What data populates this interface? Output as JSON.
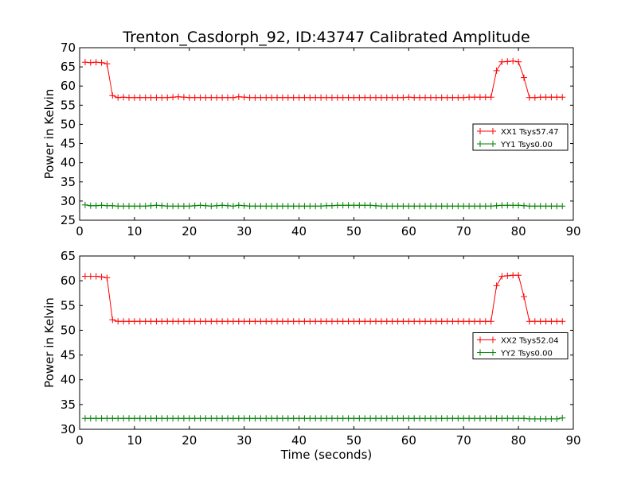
{
  "title": "Trenton_Casdorph_92, ID:43747 Calibrated Amplitude",
  "chart_data": [
    {
      "type": "line",
      "ylabel": "Power in Kelvin",
      "xlabel": "",
      "xlim": [
        0,
        90
      ],
      "ylim": [
        25,
        70
      ],
      "xticks": [
        0,
        10,
        20,
        30,
        40,
        50,
        60,
        70,
        80,
        90
      ],
      "yticks": [
        25,
        30,
        35,
        40,
        45,
        50,
        55,
        60,
        65,
        70
      ],
      "grid": false,
      "legend_position": "center-right",
      "series": [
        {
          "name": "XX1 Tsys57.47",
          "color": "#ff0000",
          "x": [
            1,
            2,
            3,
            4,
            5,
            6,
            7,
            8,
            9,
            10,
            11,
            12,
            13,
            14,
            15,
            16,
            17,
            18,
            19,
            20,
            21,
            22,
            23,
            24,
            25,
            26,
            27,
            28,
            29,
            30,
            31,
            32,
            33,
            34,
            35,
            36,
            37,
            38,
            39,
            40,
            41,
            42,
            43,
            44,
            45,
            46,
            47,
            48,
            49,
            50,
            51,
            52,
            53,
            54,
            55,
            56,
            57,
            58,
            59,
            60,
            61,
            62,
            63,
            64,
            65,
            66,
            67,
            68,
            69,
            70,
            71,
            72,
            73,
            74,
            75,
            76,
            77,
            78,
            79,
            80,
            81,
            82,
            83,
            84,
            85,
            86,
            87,
            88
          ],
          "values": [
            66.2,
            66.1,
            66.2,
            66.1,
            65.8,
            57.5,
            57.0,
            57.1,
            57.0,
            57.0,
            57.0,
            57.0,
            57.0,
            57.0,
            57.0,
            57.0,
            57.1,
            57.2,
            57.1,
            57.0,
            57.0,
            57.0,
            57.0,
            57.0,
            57.0,
            57.0,
            57.0,
            57.0,
            57.2,
            57.1,
            57.0,
            57.0,
            57.0,
            57.0,
            57.0,
            57.0,
            57.0,
            57.0,
            57.0,
            57.0,
            57.0,
            57.0,
            57.0,
            57.0,
            57.0,
            57.0,
            57.0,
            57.0,
            57.0,
            57.0,
            57.0,
            57.0,
            57.0,
            57.0,
            57.0,
            57.0,
            57.0,
            57.0,
            57.0,
            57.1,
            57.0,
            57.0,
            57.0,
            57.0,
            57.0,
            57.0,
            57.0,
            57.0,
            57.0,
            57.0,
            57.1,
            57.1,
            57.1,
            57.1,
            57.1,
            64.0,
            66.3,
            66.4,
            66.5,
            66.3,
            62.2,
            57.0,
            57.0,
            57.1,
            57.1,
            57.1,
            57.1,
            57.1
          ]
        },
        {
          "name": "YY1 Tsys0.00",
          "color": "#008000",
          "x": [
            1,
            2,
            3,
            4,
            5,
            6,
            7,
            8,
            9,
            10,
            11,
            12,
            13,
            14,
            15,
            16,
            17,
            18,
            19,
            20,
            21,
            22,
            23,
            24,
            25,
            26,
            27,
            28,
            29,
            30,
            31,
            32,
            33,
            34,
            35,
            36,
            37,
            38,
            39,
            40,
            41,
            42,
            43,
            44,
            45,
            46,
            47,
            48,
            49,
            50,
            51,
            52,
            53,
            54,
            55,
            56,
            57,
            58,
            59,
            60,
            61,
            62,
            63,
            64,
            65,
            66,
            67,
            68,
            69,
            70,
            71,
            72,
            73,
            74,
            75,
            76,
            77,
            78,
            79,
            80,
            81,
            82,
            83,
            84,
            85,
            86,
            87,
            88
          ],
          "values": [
            29.0,
            28.8,
            28.8,
            28.9,
            28.8,
            28.8,
            28.7,
            28.7,
            28.7,
            28.7,
            28.7,
            28.7,
            28.8,
            28.9,
            28.8,
            28.7,
            28.7,
            28.7,
            28.7,
            28.7,
            28.8,
            28.9,
            28.8,
            28.7,
            28.8,
            28.9,
            28.8,
            28.7,
            28.9,
            28.8,
            28.7,
            28.7,
            28.7,
            28.7,
            28.7,
            28.7,
            28.7,
            28.7,
            28.7,
            28.7,
            28.7,
            28.7,
            28.7,
            28.7,
            28.8,
            28.8,
            28.9,
            28.9,
            28.9,
            28.9,
            28.9,
            28.9,
            28.9,
            28.8,
            28.7,
            28.7,
            28.7,
            28.7,
            28.7,
            28.7,
            28.7,
            28.7,
            28.7,
            28.7,
            28.7,
            28.7,
            28.7,
            28.7,
            28.7,
            28.7,
            28.7,
            28.7,
            28.7,
            28.7,
            28.7,
            28.8,
            28.9,
            28.9,
            28.9,
            28.9,
            28.8,
            28.7,
            28.7,
            28.7,
            28.7,
            28.7,
            28.7,
            28.7
          ]
        }
      ]
    },
    {
      "type": "line",
      "ylabel": "Power in Kelvin",
      "xlabel": "Time (seconds)",
      "xlim": [
        0,
        90
      ],
      "ylim": [
        30,
        65
      ],
      "xticks": [
        0,
        10,
        20,
        30,
        40,
        50,
        60,
        70,
        80,
        90
      ],
      "yticks": [
        30,
        35,
        40,
        45,
        50,
        55,
        60,
        65
      ],
      "grid": false,
      "legend_position": "center-right",
      "series": [
        {
          "name": "XX2 Tsys52.04",
          "color": "#ff0000",
          "x": [
            1,
            2,
            3,
            4,
            5,
            6,
            7,
            8,
            9,
            10,
            11,
            12,
            13,
            14,
            15,
            16,
            17,
            18,
            19,
            20,
            21,
            22,
            23,
            24,
            25,
            26,
            27,
            28,
            29,
            30,
            31,
            32,
            33,
            34,
            35,
            36,
            37,
            38,
            39,
            40,
            41,
            42,
            43,
            44,
            45,
            46,
            47,
            48,
            49,
            50,
            51,
            52,
            53,
            54,
            55,
            56,
            57,
            58,
            59,
            60,
            61,
            62,
            63,
            64,
            65,
            66,
            67,
            68,
            69,
            70,
            71,
            72,
            73,
            74,
            75,
            76,
            77,
            78,
            79,
            80,
            81,
            82,
            83,
            84,
            85,
            86,
            87,
            88
          ],
          "values": [
            60.9,
            60.9,
            60.9,
            60.8,
            60.6,
            52.1,
            51.8,
            51.8,
            51.8,
            51.8,
            51.8,
            51.8,
            51.8,
            51.8,
            51.8,
            51.8,
            51.8,
            51.8,
            51.8,
            51.8,
            51.8,
            51.8,
            51.8,
            51.8,
            51.8,
            51.8,
            51.8,
            51.8,
            51.8,
            51.8,
            51.8,
            51.8,
            51.8,
            51.8,
            51.8,
            51.8,
            51.8,
            51.8,
            51.8,
            51.8,
            51.8,
            51.8,
            51.8,
            51.8,
            51.8,
            51.8,
            51.8,
            51.8,
            51.8,
            51.8,
            51.8,
            51.8,
            51.8,
            51.8,
            51.8,
            51.8,
            51.8,
            51.8,
            51.8,
            51.8,
            51.8,
            51.8,
            51.8,
            51.8,
            51.8,
            51.8,
            51.8,
            51.8,
            51.8,
            51.8,
            51.8,
            51.8,
            51.8,
            51.8,
            51.8,
            59.0,
            60.9,
            61.0,
            61.1,
            61.1,
            56.8,
            51.8,
            51.8,
            51.8,
            51.8,
            51.8,
            51.8,
            51.8
          ]
        },
        {
          "name": "YY2 Tsys0.00",
          "color": "#008000",
          "x": [
            1,
            2,
            3,
            4,
            5,
            6,
            7,
            8,
            9,
            10,
            11,
            12,
            13,
            14,
            15,
            16,
            17,
            18,
            19,
            20,
            21,
            22,
            23,
            24,
            25,
            26,
            27,
            28,
            29,
            30,
            31,
            32,
            33,
            34,
            35,
            36,
            37,
            38,
            39,
            40,
            41,
            42,
            43,
            44,
            45,
            46,
            47,
            48,
            49,
            50,
            51,
            52,
            53,
            54,
            55,
            56,
            57,
            58,
            59,
            60,
            61,
            62,
            63,
            64,
            65,
            66,
            67,
            68,
            69,
            70,
            71,
            72,
            73,
            74,
            75,
            76,
            77,
            78,
            79,
            80,
            81,
            82,
            83,
            84,
            85,
            86,
            87,
            88
          ],
          "values": [
            32.2,
            32.2,
            32.2,
            32.2,
            32.2,
            32.2,
            32.2,
            32.2,
            32.2,
            32.2,
            32.2,
            32.2,
            32.2,
            32.2,
            32.2,
            32.2,
            32.2,
            32.2,
            32.2,
            32.2,
            32.2,
            32.2,
            32.2,
            32.2,
            32.2,
            32.2,
            32.2,
            32.2,
            32.2,
            32.2,
            32.2,
            32.2,
            32.2,
            32.2,
            32.2,
            32.2,
            32.2,
            32.2,
            32.2,
            32.2,
            32.2,
            32.2,
            32.2,
            32.2,
            32.2,
            32.2,
            32.2,
            32.2,
            32.2,
            32.2,
            32.2,
            32.2,
            32.2,
            32.2,
            32.2,
            32.2,
            32.2,
            32.2,
            32.2,
            32.2,
            32.2,
            32.2,
            32.2,
            32.2,
            32.2,
            32.2,
            32.2,
            32.2,
            32.2,
            32.2,
            32.2,
            32.2,
            32.2,
            32.2,
            32.2,
            32.2,
            32.2,
            32.2,
            32.2,
            32.2,
            32.2,
            32.1,
            32.1,
            32.1,
            32.1,
            32.1,
            32.1,
            32.3
          ]
        }
      ]
    }
  ]
}
